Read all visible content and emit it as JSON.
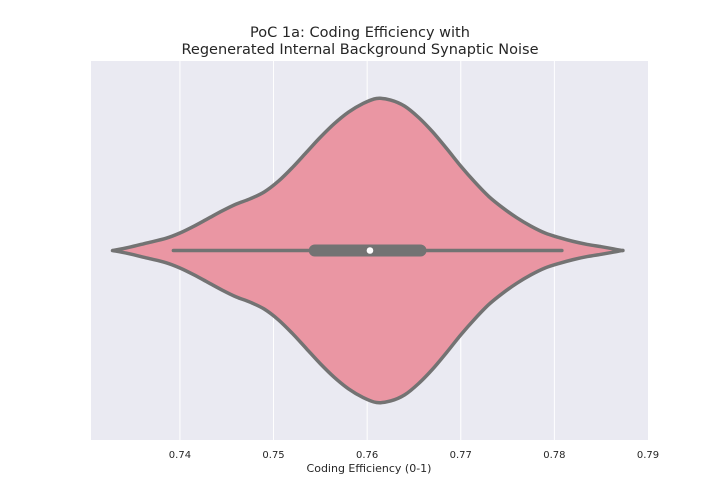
{
  "chart_data": {
    "type": "violin",
    "title_line1": "PoC 1a: Coding Efficiency with",
    "title_line2": "Regenerated Internal Background Synaptic Noise",
    "xlabel": "Coding Efficiency (0-1)",
    "xlim": [
      0.7305,
      0.79
    ],
    "xticks": [
      0.74,
      0.75,
      0.76,
      0.77,
      0.78,
      0.79
    ],
    "xtick_labels": [
      "0.74",
      "0.75",
      "0.76",
      "0.77",
      "0.78",
      "0.79"
    ],
    "grid": true,
    "orientation": "horizontal",
    "colors": {
      "background": "#eaeaf2",
      "violin_fill": "#ea96a3",
      "outline": "#737373",
      "median": "#ffffff",
      "grid": "#ffffff"
    },
    "violin": {
      "range": [
        0.7328,
        0.7872
      ],
      "density_profile": [
        [
          0.7328,
          0.0
        ],
        [
          0.7345,
          0.02
        ],
        [
          0.7365,
          0.05
        ],
        [
          0.7385,
          0.08
        ],
        [
          0.74,
          0.115
        ],
        [
          0.7415,
          0.16
        ],
        [
          0.743,
          0.21
        ],
        [
          0.7445,
          0.26
        ],
        [
          0.746,
          0.305
        ],
        [
          0.7475,
          0.34
        ],
        [
          0.749,
          0.385
        ],
        [
          0.7505,
          0.455
        ],
        [
          0.752,
          0.545
        ],
        [
          0.7535,
          0.645
        ],
        [
          0.755,
          0.745
        ],
        [
          0.7565,
          0.835
        ],
        [
          0.758,
          0.91
        ],
        [
          0.7595,
          0.965
        ],
        [
          0.761,
          1.0
        ],
        [
          0.7625,
          0.99
        ],
        [
          0.764,
          0.95
        ],
        [
          0.7655,
          0.875
        ],
        [
          0.767,
          0.78
        ],
        [
          0.7685,
          0.67
        ],
        [
          0.77,
          0.555
        ],
        [
          0.7715,
          0.45
        ],
        [
          0.773,
          0.355
        ],
        [
          0.7745,
          0.28
        ],
        [
          0.776,
          0.215
        ],
        [
          0.7775,
          0.16
        ],
        [
          0.779,
          0.115
        ],
        [
          0.7805,
          0.085
        ],
        [
          0.782,
          0.06
        ],
        [
          0.7835,
          0.04
        ],
        [
          0.785,
          0.025
        ],
        [
          0.7862,
          0.012
        ],
        [
          0.7872,
          0.0
        ]
      ],
      "whisker_low": 0.7393,
      "whisker_high": 0.7808,
      "q1": 0.7544,
      "q3": 0.7657,
      "median": 0.7603
    }
  }
}
